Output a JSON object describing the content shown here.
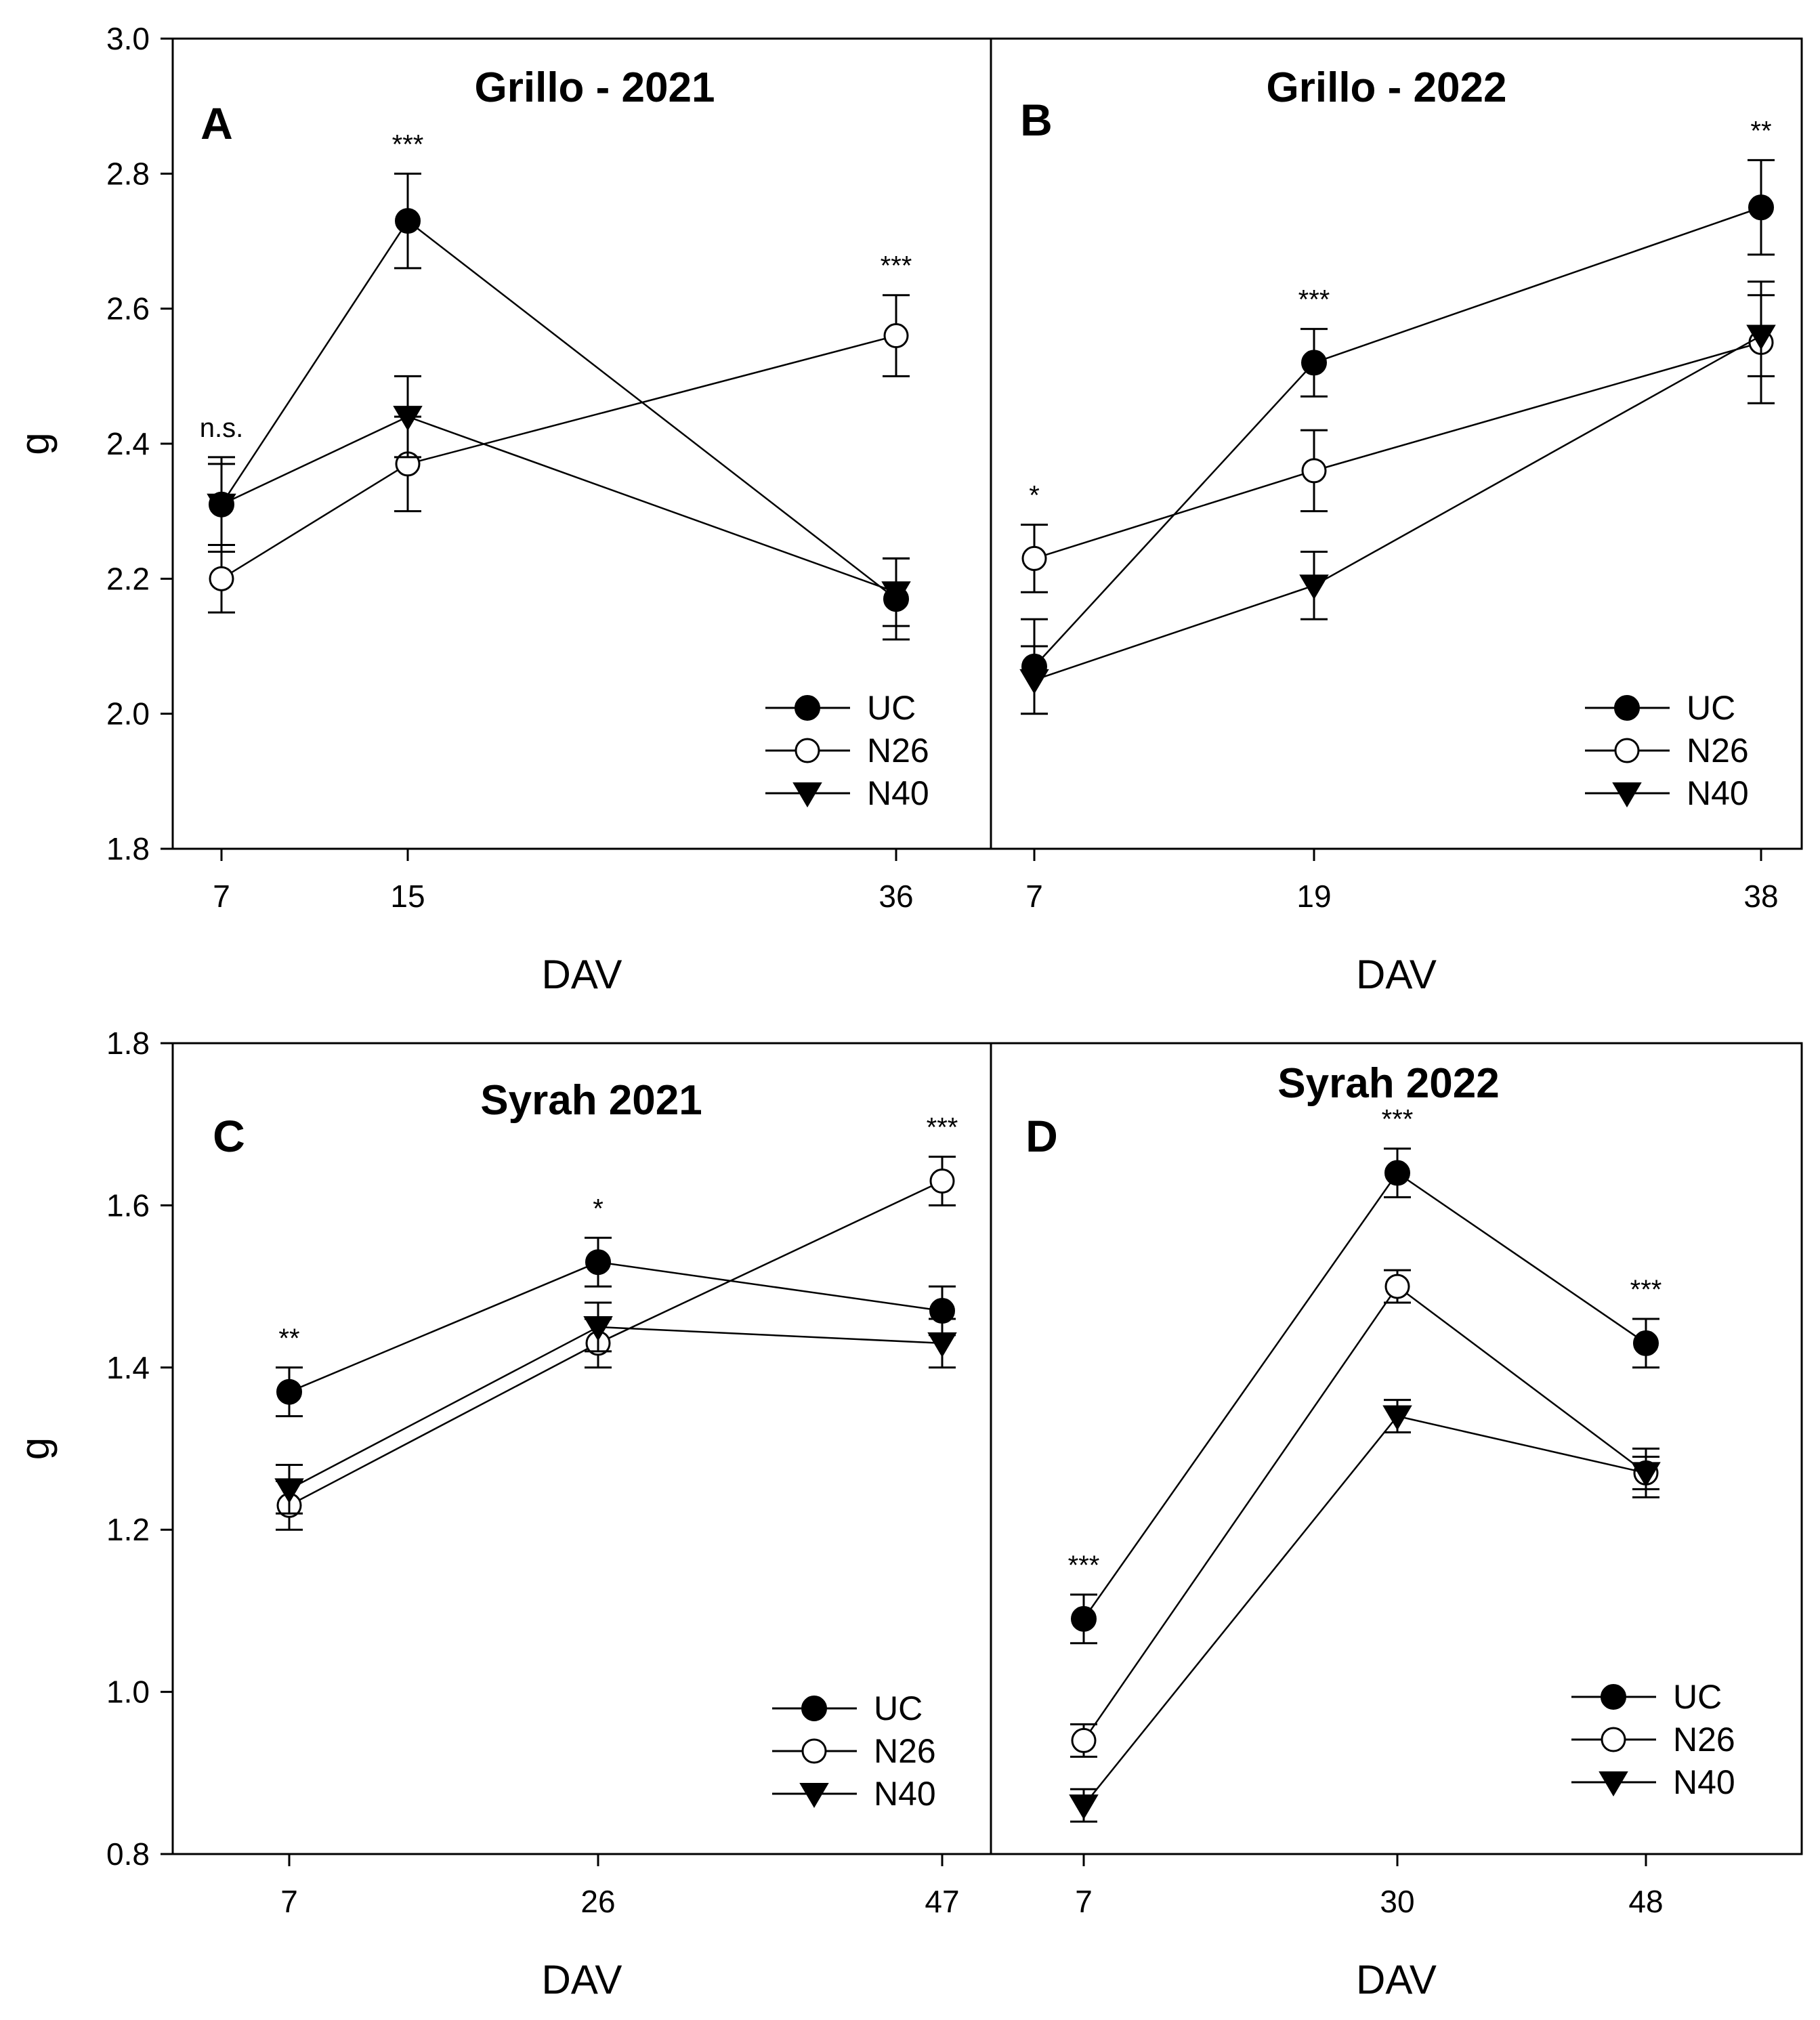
{
  "chart_data": [
    {
      "type": "line",
      "panel": "A",
      "title": "Grillo - 2021",
      "xlabel": "DAV",
      "ylabel": "g",
      "ylim": [
        1.8,
        3.0
      ],
      "yticks": [
        "1.8",
        "2.0",
        "2.2",
        "2.4",
        "2.6",
        "2.8",
        "3.0"
      ],
      "categories": [
        "7",
        "15",
        "36"
      ],
      "significance": [
        "n.s.",
        "***",
        "***"
      ],
      "legend": [
        "UC",
        "N26",
        "N40"
      ],
      "legend_position": "bottom-right",
      "series": [
        {
          "name": "UC",
          "marker": "filled-circle",
          "values": [
            2.31,
            2.73,
            2.17
          ],
          "errors": [
            0.07,
            0.07,
            0.06
          ]
        },
        {
          "name": "N26",
          "marker": "open-circle",
          "values": [
            2.2,
            2.37,
            2.56
          ],
          "errors": [
            0.05,
            0.07,
            0.06
          ]
        },
        {
          "name": "N40",
          "marker": "filled-triangle-down",
          "values": [
            2.31,
            2.44,
            2.18
          ],
          "errors": [
            0.06,
            0.06,
            0.05
          ]
        }
      ]
    },
    {
      "type": "line",
      "panel": "B",
      "title": "Grillo - 2022",
      "xlabel": "DAV",
      "ylabel": "",
      "ylim": [
        1.8,
        3.0
      ],
      "yticks": [],
      "categories": [
        "7",
        "19",
        "38"
      ],
      "significance": [
        "*",
        "***",
        "**"
      ],
      "legend": [
        "UC",
        "N26",
        "N40"
      ],
      "legend_position": "bottom-right",
      "series": [
        {
          "name": "UC",
          "marker": "filled-circle",
          "values": [
            2.07,
            2.52,
            2.75
          ],
          "errors": [
            0.07,
            0.05,
            0.07
          ]
        },
        {
          "name": "N26",
          "marker": "open-circle",
          "values": [
            2.23,
            2.36,
            2.55
          ],
          "errors": [
            0.05,
            0.06,
            0.09
          ]
        },
        {
          "name": "N40",
          "marker": "filled-triangle-down",
          "values": [
            2.05,
            2.19,
            2.56
          ],
          "errors": [
            0.05,
            0.05,
            0.06
          ]
        }
      ]
    },
    {
      "type": "line",
      "panel": "C",
      "title": "Syrah 2021",
      "xlabel": "DAV",
      "ylabel": "g",
      "ylim": [
        0.8,
        1.8
      ],
      "yticks": [
        "0.8",
        "1.0",
        "1.2",
        "1.4",
        "1.6",
        "1.8"
      ],
      "categories": [
        "7",
        "26",
        "47"
      ],
      "significance": [
        "**",
        "*",
        "***"
      ],
      "legend": [
        "UC",
        "N26",
        "N40"
      ],
      "legend_position": "bottom-right",
      "series": [
        {
          "name": "UC",
          "marker": "filled-circle",
          "values": [
            1.37,
            1.53,
            1.47
          ],
          "errors": [
            0.03,
            0.03,
            0.03
          ]
        },
        {
          "name": "N26",
          "marker": "open-circle",
          "values": [
            1.23,
            1.43,
            1.63
          ],
          "errors": [
            0.03,
            0.03,
            0.03
          ]
        },
        {
          "name": "N40",
          "marker": "filled-triangle-down",
          "values": [
            1.25,
            1.45,
            1.43
          ],
          "errors": [
            0.03,
            0.03,
            0.03
          ]
        }
      ]
    },
    {
      "type": "line",
      "panel": "D",
      "title": "Syrah 2022",
      "xlabel": "DAV",
      "ylabel": "",
      "ylim": [
        0.8,
        1.8
      ],
      "yticks": [],
      "categories": [
        "7",
        "30",
        "48"
      ],
      "significance": [
        "***",
        "***",
        "***"
      ],
      "legend": [
        "UC",
        "N26",
        "N40"
      ],
      "legend_position": "bottom-right",
      "series": [
        {
          "name": "UC",
          "marker": "filled-circle",
          "values": [
            1.09,
            1.64,
            1.43
          ],
          "errors": [
            0.03,
            0.03,
            0.03
          ]
        },
        {
          "name": "N26",
          "marker": "open-circle",
          "values": [
            0.94,
            1.5,
            1.27
          ],
          "errors": [
            0.02,
            0.02,
            0.03
          ]
        },
        {
          "name": "N40",
          "marker": "filled-triangle-down",
          "values": [
            0.86,
            1.34,
            1.27
          ],
          "errors": [
            0.02,
            0.02,
            0.02
          ]
        }
      ]
    }
  ]
}
